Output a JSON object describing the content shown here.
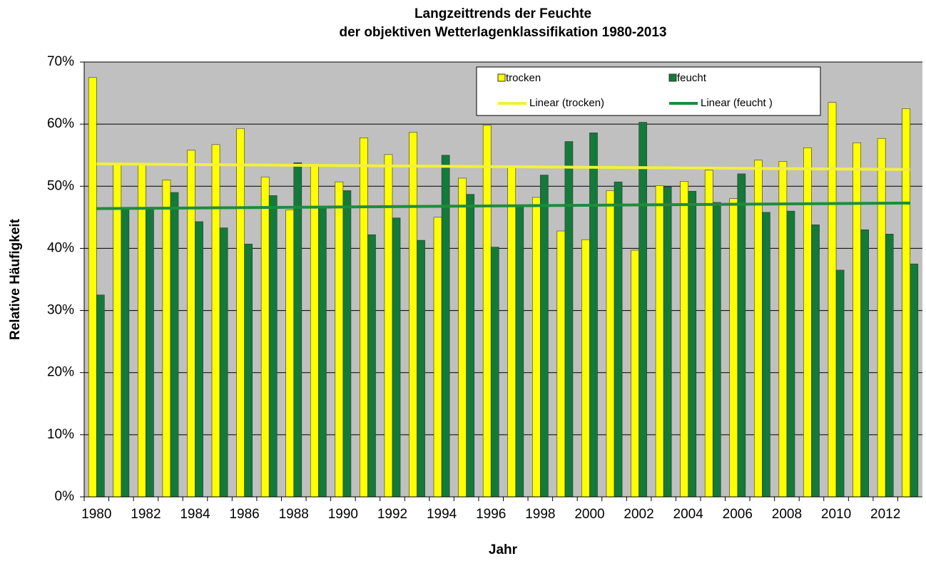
{
  "chart_data": {
    "type": "bar",
    "title": [
      "Langzeittrends der Feuchte",
      "der objektiven Wetterlagenklassifikation 1980-2013"
    ],
    "xlabel": "Jahr",
    "ylabel": "Relative Häufigkeit",
    "categories": [
      "1980",
      null,
      "1982",
      null,
      "1984",
      null,
      "1986",
      null,
      "1988",
      null,
      "1990",
      null,
      "1992",
      null,
      "1994",
      null,
      "1996",
      null,
      "1998",
      null,
      "2000",
      null,
      "2002",
      null,
      "2004",
      null,
      "2006",
      null,
      "2008",
      null,
      "2010",
      null,
      "2012",
      null
    ],
    "series": [
      {
        "name": "trocken",
        "color": "#ffff00",
        "values": [
          67.5,
          53.5,
          53.5,
          51,
          55.8,
          56.7,
          59.3,
          51.5,
          46.2,
          53.3,
          50.7,
          57.8,
          55.1,
          58.7,
          45,
          51.3,
          59.8,
          53,
          48.2,
          42.8,
          41.4,
          49.3,
          39.7,
          50.1,
          50.8,
          52.6,
          48,
          54.2,
          54,
          56.2,
          63.5,
          57,
          57.7,
          62.5
        ]
      },
      {
        "name": "feucht",
        "color": "#137a3a",
        "values": [
          32.5,
          46.5,
          46.5,
          49,
          44.3,
          43.3,
          40.7,
          48.5,
          53.8,
          46.7,
          49.3,
          42.2,
          44.9,
          41.3,
          55,
          48.7,
          40.2,
          47,
          51.8,
          57.2,
          58.6,
          50.7,
          60.3,
          49.9,
          49.2,
          47.4,
          52,
          45.8,
          46,
          43.8,
          36.5,
          43,
          42.3,
          37.5
        ]
      }
    ],
    "trendlines": [
      {
        "name": "Linear (trocken)",
        "color": "#f2f03c",
        "values": [
          53.6,
          52.7
        ]
      },
      {
        "name": "Linear (feucht )",
        "color": "#1e8c3c",
        "values": [
          46.4,
          47.3
        ]
      }
    ],
    "ylim": [
      0,
      70
    ],
    "yticks": [
      {
        "value": 0,
        "label": "0%"
      },
      {
        "value": 10,
        "label": "10%"
      },
      {
        "value": 20,
        "label": "20%"
      },
      {
        "value": 30,
        "label": "30%"
      },
      {
        "value": 40,
        "label": "40%"
      },
      {
        "value": 50,
        "label": "50%"
      },
      {
        "value": 60,
        "label": "60%"
      },
      {
        "value": 70,
        "label": "70%"
      }
    ],
    "grid": true,
    "legend": "top-right"
  }
}
